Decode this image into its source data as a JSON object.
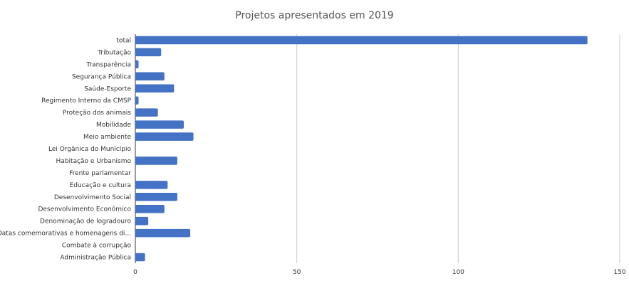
{
  "chart_data": {
    "type": "bar",
    "orientation": "horizontal",
    "title": "Projetos apresentados em 2019",
    "categories": [
      "total",
      "Tributação",
      "Transparência",
      "Segurança Pública",
      "Saúde-Esporte",
      "Regimento Interno da CMSP",
      "Proteção dos animais",
      "Mobilidade",
      "Meio ambiente",
      "Lei Orgânica do Município",
      "Habitação e Urbanismo",
      "Frente parlamentar",
      "Educação e cultura",
      "Desenvolvimento Social",
      "Desenvolvimento Econômico",
      "Denominação de logradouro",
      "Datas comemorativas e homenagens di...",
      "Combate à corrupção",
      "Administração Pública"
    ],
    "values": [
      140,
      8,
      1,
      9,
      12,
      1,
      7,
      15,
      18,
      0,
      13,
      0,
      10,
      13,
      9,
      4,
      17,
      0,
      3
    ],
    "xlim": [
      0,
      150
    ],
    "xticks": [
      "0",
      "50",
      "100",
      "150"
    ],
    "grid": true,
    "bar_color": "#4472c4",
    "xlabel": "",
    "ylabel": ""
  }
}
